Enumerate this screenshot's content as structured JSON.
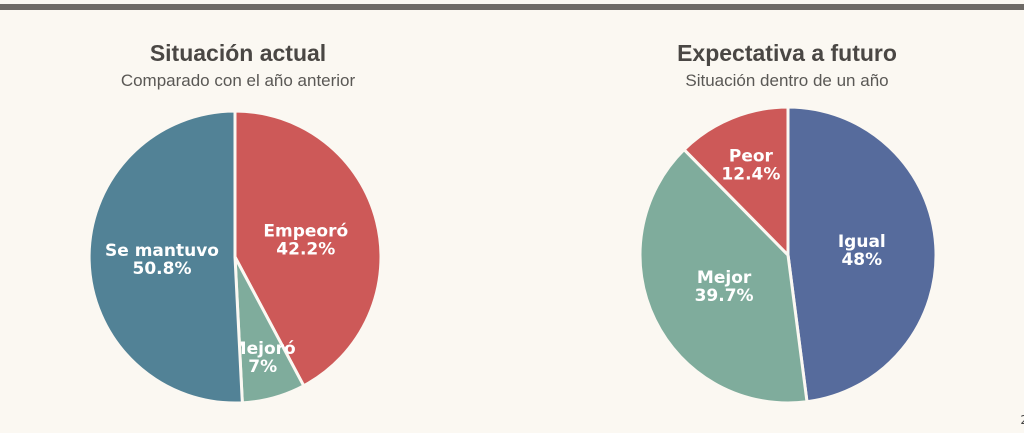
{
  "chart_data": [
    {
      "type": "pie",
      "title": "Situación actual",
      "subtitle": "Comparado con el año anterior",
      "categories": [
        "Empeoró",
        "Mejoró",
        "Se mantuvo"
      ],
      "values": [
        42.2,
        7,
        50.8
      ],
      "value_labels": [
        "42.2%",
        "7%",
        "50.8%"
      ],
      "colors": [
        "#cd5958",
        "#7fac9c",
        "#528296"
      ]
    },
    {
      "type": "pie",
      "title": "Expectativa a futuro",
      "subtitle": "Situación dentro de un año",
      "categories": [
        "Igual",
        "Mejor",
        "Peor"
      ],
      "values": [
        48,
        39.7,
        12.4
      ],
      "value_labels": [
        "48%",
        "39.7%",
        "12.4%"
      ],
      "colors": [
        "#566b9c",
        "#7fac9c",
        "#cd5958"
      ]
    }
  ],
  "page_number": "2"
}
